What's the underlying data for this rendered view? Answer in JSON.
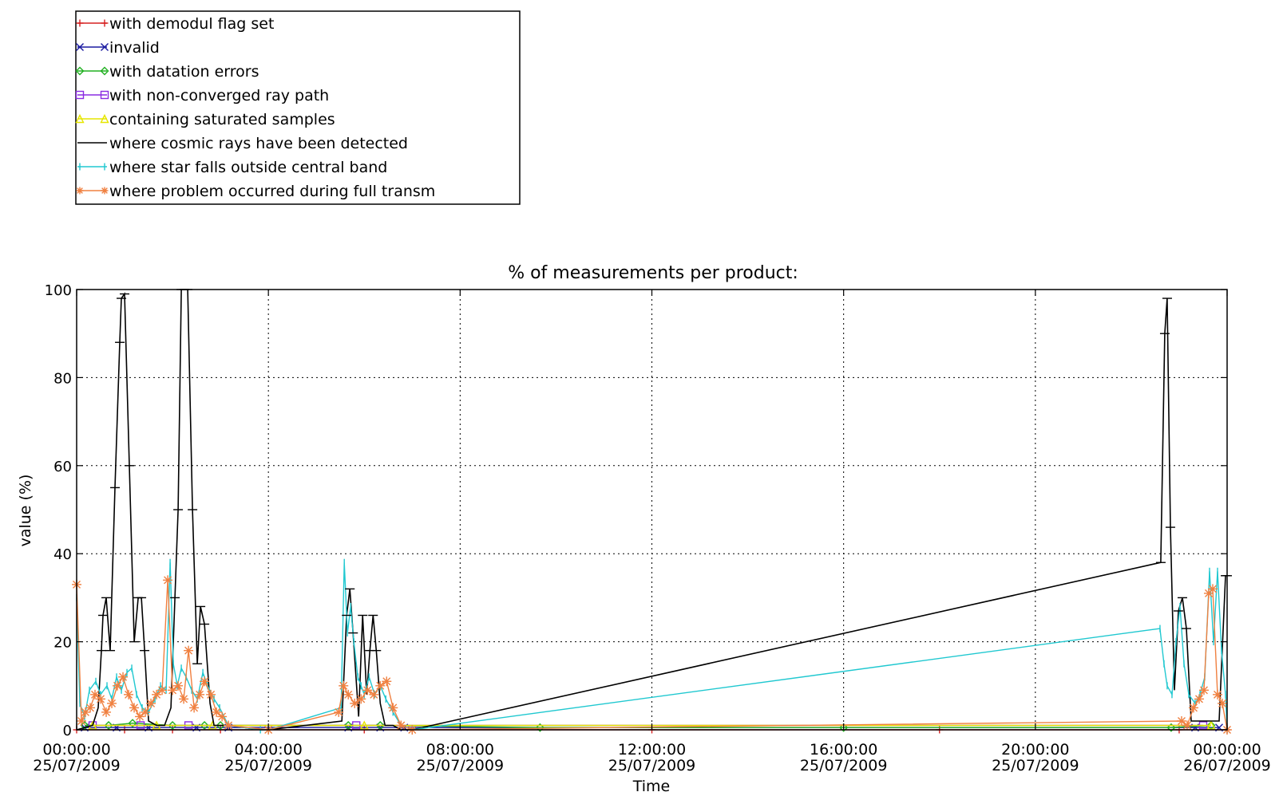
{
  "chart_data": {
    "type": "line",
    "title": "% of measurements per product:",
    "xlabel": "Time",
    "ylabel": "value (%)",
    "ylim": [
      0,
      100
    ],
    "xlim": [
      "25/07/2009 00:00:00",
      "26/07/2009 00:00:00"
    ],
    "grid": true,
    "legend_position": "above-left",
    "x_ticks": [
      {
        "time": "00:00:00",
        "date": "25/07/2009"
      },
      {
        "time": "04:00:00",
        "date": "25/07/2009"
      },
      {
        "time": "08:00:00",
        "date": "25/07/2009"
      },
      {
        "time": "12:00:00",
        "date": "25/07/2009"
      },
      {
        "time": "16:00:00",
        "date": "25/07/2009"
      },
      {
        "time": "20:00:00",
        "date": "25/07/2009"
      },
      {
        "time": "00:00:00",
        "date": "26/07/2009"
      }
    ],
    "y_ticks": [
      "0",
      "20",
      "40",
      "60",
      "80",
      "100"
    ],
    "series": [
      {
        "name": "with demodul flag set",
        "color": "#d62020",
        "marker": "plus",
        "points": [
          [
            "00:00",
            0
          ],
          [
            "01:00",
            0
          ],
          [
            "02:00",
            0
          ],
          [
            "03:00",
            0
          ],
          [
            "04:00",
            0
          ],
          [
            "06:00",
            0
          ],
          [
            "07:00",
            0
          ],
          [
            "12:00",
            0
          ],
          [
            "18:00",
            0
          ],
          [
            "23:00",
            0
          ],
          [
            "24:00",
            0
          ]
        ]
      },
      {
        "name": "invalid",
        "color": "#1a1aa0",
        "marker": "x",
        "points": [
          [
            "00:10",
            0.5
          ],
          [
            "00:50",
            0.5
          ],
          [
            "01:30",
            0.5
          ],
          [
            "02:30",
            0.5
          ],
          [
            "03:10",
            0.5
          ],
          [
            "05:40",
            0.5
          ],
          [
            "06:20",
            0.5
          ],
          [
            "06:50",
            0.5
          ],
          [
            "23:20",
            0.5
          ],
          [
            "23:50",
            0.5
          ]
        ]
      },
      {
        "name": "with datation errors",
        "color": "#20b020",
        "marker": "diamond",
        "points": [
          [
            "00:10",
            1
          ],
          [
            "00:40",
            1
          ],
          [
            "01:10",
            1.5
          ],
          [
            "02:00",
            1
          ],
          [
            "02:40",
            1
          ],
          [
            "03:00",
            1
          ],
          [
            "05:40",
            1
          ],
          [
            "06:20",
            1
          ],
          [
            "09:40",
            0.5
          ],
          [
            "16:00",
            0.5
          ],
          [
            "22:50",
            0.5
          ],
          [
            "23:40",
            1
          ]
        ]
      },
      {
        "name": "with non-converged ray path",
        "color": "#8a2be2",
        "marker": "square",
        "points": [
          [
            "00:20",
            1
          ],
          [
            "01:20",
            1
          ],
          [
            "02:20",
            1
          ],
          [
            "05:50",
            1
          ],
          [
            "23:30",
            1
          ]
        ]
      },
      {
        "name": "containing saturated samples",
        "color": "#e6e600",
        "marker": "triangle",
        "points": [
          [
            "00:20",
            1
          ],
          [
            "01:40",
            1
          ],
          [
            "02:50",
            1
          ],
          [
            "06:00",
            1
          ],
          [
            "23:40",
            1
          ]
        ]
      },
      {
        "name": "where cosmic rays have been detected",
        "color": "#000000",
        "marker": "none",
        "points": [
          [
            "00:00",
            0
          ],
          [
            "00:20",
            1
          ],
          [
            "00:27",
            5
          ],
          [
            "00:31",
            18
          ],
          [
            "00:33",
            26
          ],
          [
            "00:37",
            30
          ],
          [
            "00:42",
            18
          ],
          [
            "00:48",
            55
          ],
          [
            "00:54",
            88
          ],
          [
            "00:56",
            98
          ],
          [
            "01:00",
            99
          ],
          [
            "01:06",
            60
          ],
          [
            "01:12",
            20
          ],
          [
            "01:17",
            30
          ],
          [
            "01:21",
            30
          ],
          [
            "01:25",
            18
          ],
          [
            "01:30",
            2
          ],
          [
            "01:40",
            1
          ],
          [
            "01:50",
            1
          ],
          [
            "01:58",
            5
          ],
          [
            "02:03",
            30
          ],
          [
            "02:07",
            50
          ],
          [
            "02:11",
            100
          ],
          [
            "02:15",
            100
          ],
          [
            "02:19",
            100
          ],
          [
            "02:25",
            50
          ],
          [
            "02:31",
            15
          ],
          [
            "02:35",
            28
          ],
          [
            "02:40",
            24
          ],
          [
            "02:47",
            6
          ],
          [
            "02:52",
            1
          ],
          [
            "03:10",
            1
          ],
          [
            "03:50",
            0
          ],
          [
            "04:00",
            0
          ],
          [
            "05:32",
            2
          ],
          [
            "05:38",
            26
          ],
          [
            "05:42",
            32
          ],
          [
            "05:46",
            22
          ],
          [
            "05:53",
            3
          ],
          [
            "05:58",
            26
          ],
          [
            "06:03",
            8
          ],
          [
            "06:07",
            18
          ],
          [
            "06:11",
            26
          ],
          [
            "06:15",
            18
          ],
          [
            "06:20",
            6
          ],
          [
            "06:26",
            1
          ],
          [
            "06:36",
            1
          ],
          [
            "06:46",
            0
          ],
          [
            "07:00",
            0
          ],
          [
            "22:37",
            38
          ],
          [
            "22:42",
            90
          ],
          [
            "22:45",
            98
          ],
          [
            "22:49",
            46
          ],
          [
            "22:54",
            9
          ],
          [
            "22:59",
            27
          ],
          [
            "23:04",
            30
          ],
          [
            "23:09",
            23
          ],
          [
            "23:15",
            2
          ],
          [
            "23:30",
            2
          ],
          [
            "23:50",
            2
          ],
          [
            "23:58",
            35
          ],
          [
            "24:00",
            35
          ]
        ]
      },
      {
        "name": "where star falls outside central band",
        "color": "#20c8d0",
        "marker": "tick",
        "points": [
          [
            "00:00",
            30
          ],
          [
            "00:04",
            6
          ],
          [
            "00:10",
            3
          ],
          [
            "00:16",
            9
          ],
          [
            "00:24",
            11
          ],
          [
            "00:30",
            8
          ],
          [
            "00:38",
            10
          ],
          [
            "00:44",
            7
          ],
          [
            "00:50",
            12
          ],
          [
            "00:56",
            9
          ],
          [
            "01:03",
            13
          ],
          [
            "01:09",
            14
          ],
          [
            "01:15",
            8
          ],
          [
            "01:22",
            5
          ],
          [
            "01:30",
            4
          ],
          [
            "01:38",
            7
          ],
          [
            "01:45",
            10
          ],
          [
            "01:52",
            9
          ],
          [
            "01:57",
            38
          ],
          [
            "02:01",
            15
          ],
          [
            "02:06",
            10
          ],
          [
            "02:11",
            14
          ],
          [
            "02:17",
            12
          ],
          [
            "02:24",
            9
          ],
          [
            "02:31",
            7
          ],
          [
            "02:38",
            13
          ],
          [
            "02:44",
            10
          ],
          [
            "02:52",
            7
          ],
          [
            "02:59",
            5
          ],
          [
            "03:10",
            1
          ],
          [
            "03:50",
            0
          ],
          [
            "04:00",
            0
          ],
          [
            "05:31",
            5
          ],
          [
            "05:35",
            38
          ],
          [
            "05:39",
            22
          ],
          [
            "05:43",
            28
          ],
          [
            "05:47",
            20
          ],
          [
            "05:52",
            12
          ],
          [
            "05:56",
            10
          ],
          [
            "06:00",
            8
          ],
          [
            "06:06",
            12
          ],
          [
            "06:13",
            8
          ],
          [
            "06:20",
            10
          ],
          [
            "06:27",
            7
          ],
          [
            "06:36",
            4
          ],
          [
            "06:46",
            1
          ],
          [
            "07:00",
            0
          ],
          [
            "22:36",
            23
          ],
          [
            "22:41",
            15
          ],
          [
            "22:45",
            10
          ],
          [
            "22:51",
            8
          ],
          [
            "22:56",
            20
          ],
          [
            "23:01",
            28
          ],
          [
            "23:06",
            15
          ],
          [
            "23:12",
            8
          ],
          [
            "23:20",
            6
          ],
          [
            "23:26",
            8
          ],
          [
            "23:32",
            12
          ],
          [
            "23:38",
            36
          ],
          [
            "23:43",
            20
          ],
          [
            "23:48",
            36
          ],
          [
            "23:53",
            18
          ],
          [
            "23:58",
            8
          ],
          [
            "24:00",
            0
          ]
        ]
      },
      {
        "name": "where problem occurred during full transm",
        "color": "#f08040",
        "marker": "asterisk",
        "points": [
          [
            "00:00",
            33
          ],
          [
            "00:06",
            2
          ],
          [
            "00:11",
            4
          ],
          [
            "00:17",
            5
          ],
          [
            "00:23",
            8
          ],
          [
            "00:30",
            7
          ],
          [
            "00:37",
            4
          ],
          [
            "00:44",
            6
          ],
          [
            "00:51",
            10
          ],
          [
            "00:58",
            12
          ],
          [
            "01:05",
            8
          ],
          [
            "01:12",
            5
          ],
          [
            "01:19",
            3
          ],
          [
            "01:26",
            4
          ],
          [
            "01:33",
            6
          ],
          [
            "01:40",
            8
          ],
          [
            "01:47",
            9
          ],
          [
            "01:54",
            34
          ],
          [
            "02:00",
            9
          ],
          [
            "02:07",
            10
          ],
          [
            "02:14",
            7
          ],
          [
            "02:20",
            18
          ],
          [
            "02:27",
            5
          ],
          [
            "02:34",
            8
          ],
          [
            "02:40",
            11
          ],
          [
            "02:48",
            8
          ],
          [
            "02:55",
            4
          ],
          [
            "03:02",
            3
          ],
          [
            "03:10",
            1
          ],
          [
            "04:00",
            0
          ],
          [
            "05:28",
            4
          ],
          [
            "05:34",
            10
          ],
          [
            "05:40",
            8
          ],
          [
            "05:48",
            6
          ],
          [
            "05:56",
            7
          ],
          [
            "06:04",
            9
          ],
          [
            "06:12",
            8
          ],
          [
            "06:20",
            10
          ],
          [
            "06:28",
            11
          ],
          [
            "06:36",
            5
          ],
          [
            "06:46",
            1
          ],
          [
            "07:00",
            0
          ],
          [
            "23:03",
            2
          ],
          [
            "23:10",
            1
          ],
          [
            "23:18",
            5
          ],
          [
            "23:25",
            7
          ],
          [
            "23:31",
            9
          ],
          [
            "23:37",
            31
          ],
          [
            "23:42",
            32
          ],
          [
            "23:48",
            8
          ],
          [
            "23:54",
            6
          ],
          [
            "24:00",
            0
          ]
        ]
      }
    ]
  }
}
